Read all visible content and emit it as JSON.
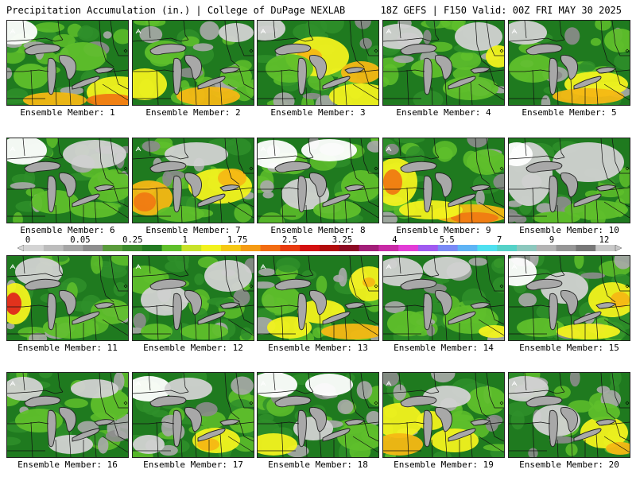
{
  "header": {
    "left": "Precipitation Accumulation (in.) | College of DuPage NEXLAB",
    "right": "18Z GEFS | F150 Valid: 00Z FRI MAY 30 2025"
  },
  "scale": {
    "tick_labels": [
      "0",
      "0.05",
      "0.25",
      "1",
      "1.75",
      "2.5",
      "3.25",
      "4",
      "5.5",
      "7",
      "9",
      "12"
    ],
    "colors": [
      "#d4d4d4",
      "#bdbdbd",
      "#a6a6a6",
      "#8e8e8e",
      "#5a9b3c",
      "#3c8a2d",
      "#237a22",
      "#5fbf2b",
      "#c8e22a",
      "#f2f21e",
      "#f5c815",
      "#f59b14",
      "#f26c12",
      "#e83b10",
      "#d41010",
      "#b20c0c",
      "#8c0a23",
      "#a21e78",
      "#c82aa5",
      "#e23cd6",
      "#a05af0",
      "#7a8af5",
      "#5fb4f5",
      "#4fe0f0",
      "#55d2c8",
      "#8cc8be",
      "#b4b4b4",
      "#969696",
      "#787878",
      "#c8c8c8"
    ]
  },
  "panels": [
    {
      "label": "Ensemble Member: 1"
    },
    {
      "label": "Ensemble Member: 2"
    },
    {
      "label": "Ensemble Member: 3"
    },
    {
      "label": "Ensemble Member: 4"
    },
    {
      "label": "Ensemble Member: 5"
    },
    {
      "label": "Ensemble Member: 6"
    },
    {
      "label": "Ensemble Member: 7"
    },
    {
      "label": "Ensemble Member: 8"
    },
    {
      "label": "Ensemble Member: 9"
    },
    {
      "label": "Ensemble Member: 10"
    },
    {
      "label": "Ensemble Member: 11"
    },
    {
      "label": "Ensemble Member: 12"
    },
    {
      "label": "Ensemble Member: 13"
    },
    {
      "label": "Ensemble Member: 14"
    },
    {
      "label": "Ensemble Member: 15"
    },
    {
      "label": "Ensemble Member: 16"
    },
    {
      "label": "Ensemble Member: 17"
    },
    {
      "label": "Ensemble Member: 18"
    },
    {
      "label": "Ensemble Member: 19"
    },
    {
      "label": "Ensemble Member: 20"
    }
  ]
}
